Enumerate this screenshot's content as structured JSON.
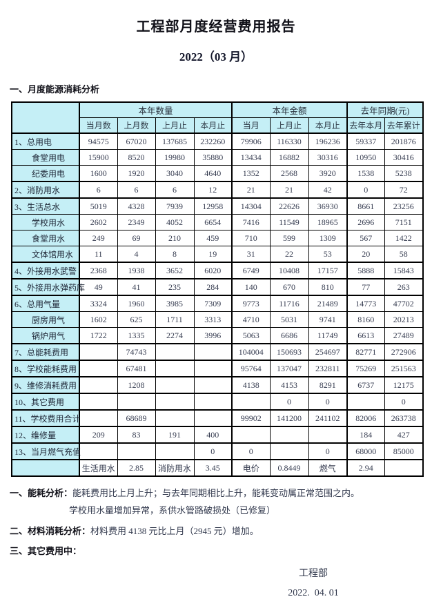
{
  "colors": {
    "highlight_cyan": "#c5eff6",
    "border": "#000000",
    "text": "#333a4e"
  },
  "header": {
    "title": "工程部月度经营费用报告",
    "subtitle": "2022（03 月）"
  },
  "section": {
    "heading": "一、月度能源消耗分析"
  },
  "table": {
    "groups": [
      "本年数量",
      "本年金额",
      "去年同期(元)"
    ],
    "sub_headers": [
      "当月数",
      "上月数",
      "上月止",
      "本月止",
      "当月",
      "上月止",
      "本月止",
      "去年本月",
      "去年累计"
    ],
    "rows": [
      {
        "label": "1、总用电",
        "indent": false,
        "group": true,
        "cells": [
          "94575",
          "67020",
          "137685",
          "232260",
          "79906",
          "116330",
          "196236",
          "59337",
          "201876"
        ]
      },
      {
        "label": "食堂用电",
        "indent": true,
        "group": false,
        "cells": [
          "15900",
          "8520",
          "19980",
          "35880",
          "13434",
          "16882",
          "30316",
          "10950",
          "30416"
        ]
      },
      {
        "label": "纪委用电",
        "indent": true,
        "group": false,
        "cells": [
          "1600",
          "1920",
          "3040",
          "4640",
          "1352",
          "2568",
          "3920",
          "1538",
          "5238"
        ]
      },
      {
        "label": "2、消防用水",
        "indent": false,
        "group": true,
        "cells": [
          "6",
          "6",
          "6",
          "12",
          "21",
          "21",
          "42",
          "0",
          "72"
        ]
      },
      {
        "label": "3、生活总水",
        "indent": false,
        "group": true,
        "cells": [
          "5019",
          "4328",
          "7939",
          "12958",
          "14304",
          "22626",
          "36930",
          "8661",
          "23256"
        ]
      },
      {
        "label": "学校用水",
        "indent": true,
        "group": false,
        "cells": [
          "2602",
          "2349",
          "4052",
          "6654",
          "7416",
          "11549",
          "18965",
          "2696",
          "7151"
        ]
      },
      {
        "label": "食堂用水",
        "indent": true,
        "group": false,
        "cells": [
          "249",
          "69",
          "210",
          "459",
          "710",
          "599",
          "1309",
          "567",
          "1422"
        ]
      },
      {
        "label": "文体馆用水",
        "indent": true,
        "group": false,
        "cells": [
          "11",
          "4",
          "8",
          "19",
          "31",
          "22",
          "53",
          "20",
          "58"
        ]
      },
      {
        "label": "4、外接用水武警",
        "indent": false,
        "group": true,
        "cells": [
          "2368",
          "1938",
          "3652",
          "6020",
          "6749",
          "10408",
          "17157",
          "5888",
          "15843"
        ]
      },
      {
        "label": "5、外接用水弹药库",
        "indent": false,
        "group": true,
        "cells": [
          "49",
          "41",
          "235",
          "284",
          "140",
          "670",
          "810",
          "77",
          "263"
        ]
      },
      {
        "label": "6、总用气量",
        "indent": false,
        "group": true,
        "cells": [
          "3324",
          "1960",
          "3985",
          "7309",
          "9773",
          "11716",
          "21489",
          "14773",
          "47702"
        ]
      },
      {
        "label": "厨房用气",
        "indent": true,
        "group": false,
        "cells": [
          "1602",
          "625",
          "1711",
          "3313",
          "4710",
          "5031",
          "9741",
          "8160",
          "20213"
        ]
      },
      {
        "label": "锅炉用气",
        "indent": true,
        "group": false,
        "cells": [
          "1722",
          "1335",
          "2274",
          "3996",
          "5063",
          "6686",
          "11749",
          "6613",
          "27489"
        ]
      },
      {
        "label": "7、总能耗费用",
        "indent": false,
        "group": true,
        "cells": [
          "",
          "74743",
          "",
          "",
          "104004",
          "150693",
          "254697",
          "82771",
          "272906"
        ]
      },
      {
        "label": "8、学校能耗费用",
        "indent": false,
        "group": true,
        "cells": [
          "",
          "67481",
          "",
          "",
          "95764",
          "137047",
          "232811",
          "75269",
          "251563"
        ]
      },
      {
        "label": "9、维修消耗费用",
        "indent": false,
        "group": true,
        "cells": [
          "",
          "1208",
          "",
          "",
          "4138",
          "4153",
          "8291",
          "6737",
          "12175"
        ]
      },
      {
        "label": "10、其它费用",
        "indent": false,
        "group": true,
        "cells": [
          "",
          "",
          "",
          "",
          "",
          "0",
          "0",
          "",
          "0"
        ]
      },
      {
        "label": "11、学校费用合计",
        "indent": false,
        "group": true,
        "cells": [
          "",
          "68689",
          "",
          "",
          "99902",
          "141200",
          "241102",
          "82006",
          "263738"
        ]
      },
      {
        "label": "12、维修量",
        "indent": false,
        "group": true,
        "cells": [
          "209",
          "83",
          "191",
          "400",
          "",
          "",
          "",
          "184",
          "427"
        ]
      },
      {
        "label": "13、当月燃气充值",
        "indent": false,
        "group": true,
        "cells": [
          "",
          "",
          "",
          "0",
          "0",
          "",
          "0",
          "68000",
          "85000"
        ]
      },
      {
        "label": "",
        "indent": false,
        "group": true,
        "cells": [
          "生活用水",
          "2.85",
          "消防用水",
          "3.45",
          "电价",
          "0.8449",
          "燃气",
          "2.94",
          ""
        ]
      }
    ]
  },
  "analysis": {
    "item1_label": "一、能耗分析：",
    "item1_text": "能耗费用比上月上升；与去年同期相比上升，能耗变动属正常范围之内。",
    "item1_text2": "学校用水量增加异常，系供水管路破损处（已修复）",
    "item2_label": "二、材料消耗分析：",
    "item2_text": "材料费用 4138 元比上月（2945 元）增加。",
    "item3_label": "三、其它费用中："
  },
  "footer": {
    "dept": "工程部",
    "date": "2022.  04. 01"
  }
}
